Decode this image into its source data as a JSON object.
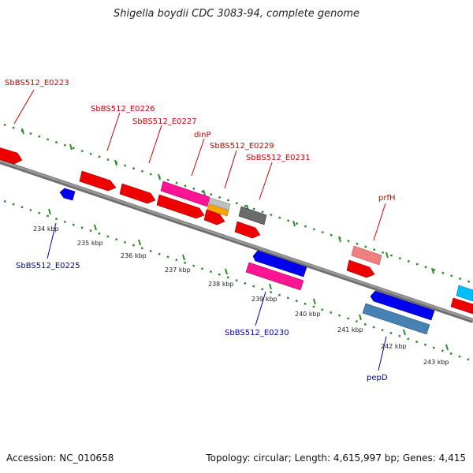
{
  "title": "Shigella boydii CDC 3083-94, complete genome",
  "footer": {
    "accession": "Accession: NC_010658",
    "summary": "Topology: circular; Length: 4,615,997 bp; Genes: 4,415"
  },
  "scale_labels": [
    "234 kbp",
    "235 kbp",
    "236 kbp",
    "237 kbp",
    "238 kbp",
    "239 kbp",
    "240 kbp",
    "241 kbp",
    "242 kbp",
    "243 kbp"
  ],
  "colors": {
    "forward_label": "#cc0000",
    "reverse_label": "#0000aa",
    "tick": "#2e8b2e",
    "backbone": "#8a8a8a"
  },
  "forward_labels": [
    "SbBS512_E0223",
    "SbBS512_E0226",
    "SbBS512_E0227",
    "dinP",
    "SbBS512_E0229",
    "SbBS512_E0231",
    "prfH"
  ],
  "reverse_labels": [
    "SbBS512_E0225",
    "SbBS512_E0230",
    "pepD"
  ]
}
